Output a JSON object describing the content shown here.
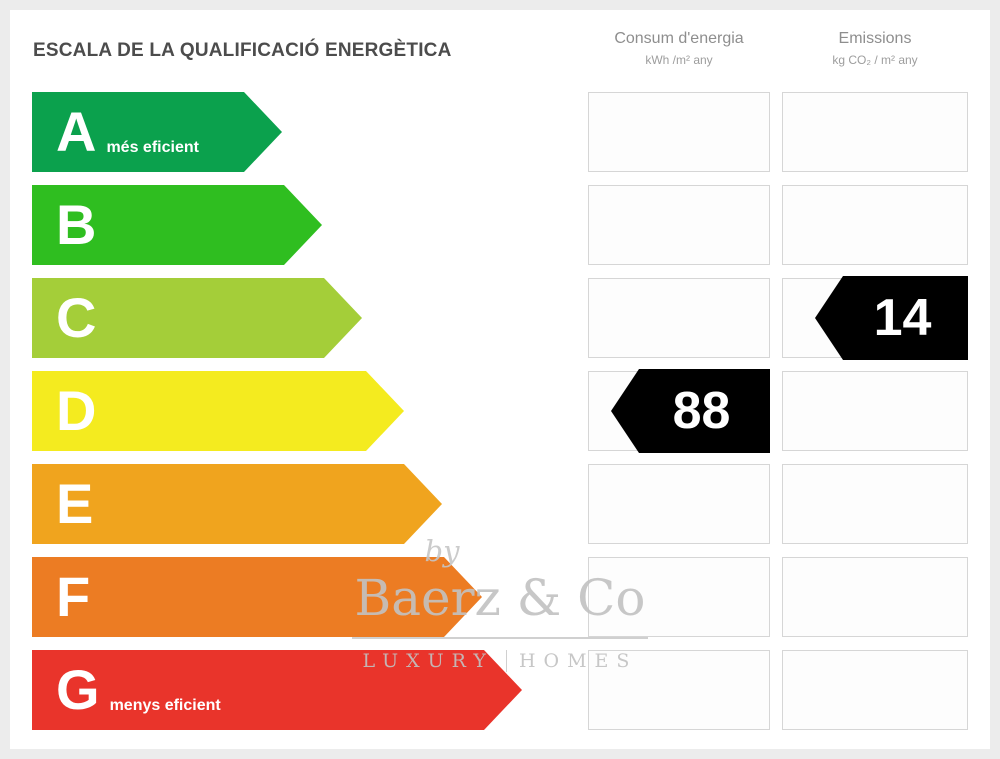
{
  "chart_data": {
    "type": "table",
    "title": "ESCALA DE LA QUALIFICACIÓ ENERGÈTICA",
    "scale": [
      "A",
      "B",
      "C",
      "D",
      "E",
      "F",
      "G"
    ],
    "scale_notes": {
      "A": "més eficient",
      "G": "menys eficient"
    },
    "columns": [
      "Consum d'energia (kWh/m² any)",
      "Emissions (kg CO₂/m² any)"
    ],
    "consum_energia": {
      "value": 88,
      "rating_row": "D"
    },
    "emissions": {
      "value": 14,
      "rating_row": "C"
    }
  },
  "title": "ESCALA DE LA QUALIFICACIÓ ENERGÈTICA",
  "columns": {
    "consum": {
      "label": "Consum d'energia",
      "sublabel": "kWh /m² any"
    },
    "emissions": {
      "label": "Emissions",
      "sublabel": "kg CO₂ / m² any"
    }
  },
  "ratings": [
    {
      "letter": "A",
      "note": "més eficient",
      "color": "#0ba14d"
    },
    {
      "letter": "B",
      "note": "",
      "color": "#2fbe20"
    },
    {
      "letter": "C",
      "note": "",
      "color": "#a4ce39"
    },
    {
      "letter": "D",
      "note": "",
      "color": "#f4eb1f"
    },
    {
      "letter": "E",
      "note": "",
      "color": "#f0a41e"
    },
    {
      "letter": "F",
      "note": "",
      "color": "#ec7c23"
    },
    {
      "letter": "G",
      "note": "menys eficient",
      "color": "#e9342b"
    }
  ],
  "indicators": {
    "arrow_color": "#000000",
    "text_color": "#ffffff",
    "consum": {
      "value": "88"
    },
    "emissions": {
      "value": "14"
    }
  },
  "watermark": {
    "by": "by",
    "name": "Baerz & Co",
    "tag_left": "LUXURY",
    "tag_right": "HOMES"
  }
}
